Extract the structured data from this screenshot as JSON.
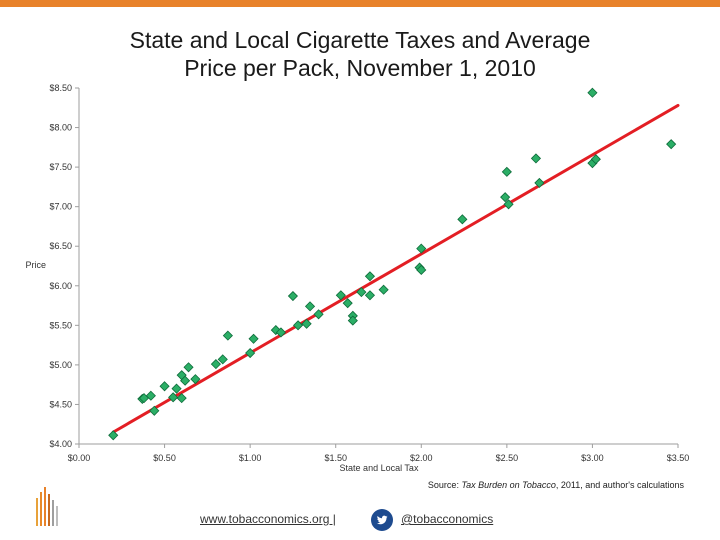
{
  "colors": {
    "accent": "#E8822A",
    "trend": "#E31E24",
    "point": "#2BAE66",
    "point_edge": "#0E6B3A",
    "axis": "#9E9E9E",
    "twitter": "#1E4B8F"
  },
  "title_line1": "State and Local Cigarette Taxes and Average",
  "title_line2": "Price per Pack, November 1, 2010",
  "chart_data": {
    "type": "scatter",
    "title": "State and Local Cigarette Taxes and Average Price per Pack, November 1, 2010",
    "xlabel": "State and Local Tax",
    "ylabel": "Price",
    "xlim": [
      0,
      3.5
    ],
    "ylim": [
      4.0,
      8.5
    ],
    "x_ticks": [
      0,
      0.5,
      1.0,
      1.5,
      2.0,
      2.5,
      3.0,
      3.5
    ],
    "x_tick_labels": [
      "$0.00",
      "$0.50",
      "$1.00",
      "$1.50",
      "$2.00",
      "$2.50",
      "$3.00",
      "$3.50"
    ],
    "y_ticks": [
      4.0,
      4.5,
      5.0,
      5.5,
      6.0,
      6.5,
      7.0,
      7.5,
      8.0,
      8.5
    ],
    "y_tick_labels": [
      "$4.00",
      "$4.50",
      "$5.00",
      "$5.50",
      "$6.00",
      "$6.50",
      "$7.00",
      "$7.50",
      "$8.00",
      "$8.50"
    ],
    "trend_line": {
      "x": [
        0.2,
        3.5
      ],
      "y": [
        4.15,
        8.28
      ]
    },
    "points": [
      {
        "x": 0.2,
        "y": 4.11
      },
      {
        "x": 0.37,
        "y": 4.57
      },
      {
        "x": 0.38,
        "y": 4.58
      },
      {
        "x": 0.42,
        "y": 4.61
      },
      {
        "x": 0.44,
        "y": 4.42
      },
      {
        "x": 0.5,
        "y": 4.73
      },
      {
        "x": 0.55,
        "y": 4.59
      },
      {
        "x": 0.57,
        "y": 4.7
      },
      {
        "x": 0.6,
        "y": 4.58
      },
      {
        "x": 0.6,
        "y": 4.87
      },
      {
        "x": 0.62,
        "y": 4.8
      },
      {
        "x": 0.64,
        "y": 4.97
      },
      {
        "x": 0.68,
        "y": 4.82
      },
      {
        "x": 0.8,
        "y": 5.01
      },
      {
        "x": 0.84,
        "y": 5.07
      },
      {
        "x": 0.87,
        "y": 5.37
      },
      {
        "x": 1.0,
        "y": 5.15
      },
      {
        "x": 1.02,
        "y": 5.33
      },
      {
        "x": 1.15,
        "y": 5.44
      },
      {
        "x": 1.18,
        "y": 5.41
      },
      {
        "x": 1.25,
        "y": 5.87
      },
      {
        "x": 1.28,
        "y": 5.5
      },
      {
        "x": 1.33,
        "y": 5.52
      },
      {
        "x": 1.35,
        "y": 5.74
      },
      {
        "x": 1.4,
        "y": 5.64
      },
      {
        "x": 1.53,
        "y": 5.88
      },
      {
        "x": 1.57,
        "y": 5.78
      },
      {
        "x": 1.6,
        "y": 5.62
      },
      {
        "x": 1.6,
        "y": 5.56
      },
      {
        "x": 1.65,
        "y": 5.92
      },
      {
        "x": 1.7,
        "y": 5.88
      },
      {
        "x": 1.7,
        "y": 6.12
      },
      {
        "x": 1.78,
        "y": 5.95
      },
      {
        "x": 1.99,
        "y": 6.23
      },
      {
        "x": 2.0,
        "y": 6.2
      },
      {
        "x": 2.0,
        "y": 6.47
      },
      {
        "x": 2.24,
        "y": 6.84
      },
      {
        "x": 2.49,
        "y": 7.12
      },
      {
        "x": 2.5,
        "y": 7.44
      },
      {
        "x": 2.51,
        "y": 7.03
      },
      {
        "x": 2.67,
        "y": 7.61
      },
      {
        "x": 2.69,
        "y": 7.3
      },
      {
        "x": 3.0,
        "y": 8.44
      },
      {
        "x": 3.0,
        "y": 7.55
      },
      {
        "x": 3.02,
        "y": 7.6
      },
      {
        "x": 3.46,
        "y": 7.79
      }
    ]
  },
  "source": {
    "prefix": "Source: ",
    "italic": "Tax Burden on Tobacco",
    "suffix": ", 2011, and author's calculations"
  },
  "footer": {
    "website": "www.tobacconomics.org |",
    "handle": "@tobacconomics"
  }
}
